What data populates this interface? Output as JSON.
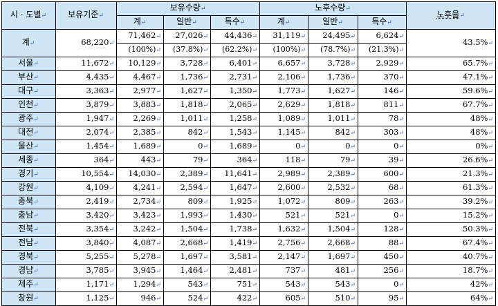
{
  "headers": {
    "region": "시 · 도별",
    "standard": "보유기준",
    "holding": "보유수량",
    "aged": "노후수량",
    "total": "계",
    "general": "일반",
    "special": "특수",
    "aged_rate": "노후율"
  },
  "total_row": {
    "region": "계",
    "standard": "68,220",
    "holding_total": "71,462",
    "holding_general": "27,026",
    "holding_special": "44,436",
    "aged_total": "31,119",
    "aged_general": "24,495",
    "aged_special": "6,624",
    "aged_rate": "43.5%",
    "holding_total_pct": "(100%)",
    "holding_general_pct": "(37.8%)",
    "holding_special_pct": "(62.2%)",
    "aged_total_pct": "(100%)",
    "aged_general_pct": "(78.7%)",
    "aged_special_pct": "(21.3%)"
  },
  "rows": [
    {
      "region": "서울",
      "standard": "11,672",
      "h_total": "10,129",
      "h_general": "3,728",
      "h_special": "6,401",
      "a_total": "6,657",
      "a_general": "3,728",
      "a_special": "2,929",
      "rate": "65.7%"
    },
    {
      "region": "부산",
      "standard": "4,435",
      "h_total": "4,467",
      "h_general": "1,736",
      "h_special": "2,731",
      "a_total": "2,106",
      "a_general": "1,736",
      "a_special": "370",
      "rate": "47.1%"
    },
    {
      "region": "대구",
      "standard": "3,363",
      "h_total": "2,977",
      "h_general": "1,627",
      "h_special": "1,350",
      "a_total": "1,773",
      "a_general": "1,627",
      "a_special": "146",
      "rate": "59.6%"
    },
    {
      "region": "인천",
      "standard": "3,879",
      "h_total": "3,883",
      "h_general": "1,818",
      "h_special": "2,065",
      "a_total": "2,629",
      "a_general": "1,818",
      "a_special": "811",
      "rate": "67.7%"
    },
    {
      "region": "광주",
      "standard": "1,947",
      "h_total": "2,269",
      "h_general": "1,011",
      "h_special": "1,258",
      "a_total": "1,089",
      "a_general": "1,011",
      "a_special": "78",
      "rate": "48%"
    },
    {
      "region": "대전",
      "standard": "2,074",
      "h_total": "2,385",
      "h_general": "842",
      "h_special": "1,543",
      "a_total": "1,145",
      "a_general": "842",
      "a_special": "303",
      "rate": "48%"
    },
    {
      "region": "울산",
      "standard": "1,454",
      "h_total": "1,689",
      "h_general": "0",
      "h_special": "1,689",
      "a_total": "0",
      "a_general": "0",
      "a_special": "0",
      "rate": "0%"
    },
    {
      "region": "세종",
      "standard": "364",
      "h_total": "443",
      "h_general": "79",
      "h_special": "364",
      "a_total": "118",
      "a_general": "79",
      "a_special": "39",
      "rate": "26.6%"
    },
    {
      "region": "경기",
      "standard": "10,554",
      "h_total": "14,030",
      "h_general": "2,389",
      "h_special": "11,641",
      "a_total": "2,989",
      "a_general": "2,389",
      "a_special": "600",
      "rate": "21.3%"
    },
    {
      "region": "강원",
      "standard": "4,109",
      "h_total": "4,241",
      "h_general": "2,594",
      "h_special": "1,647",
      "a_total": "2,600",
      "a_general": "2,532",
      "a_special": "68",
      "rate": "61.3%"
    },
    {
      "region": "충북",
      "standard": "2,419",
      "h_total": "2,734",
      "h_general": "809",
      "h_special": "1,925",
      "a_total": "1,072",
      "a_general": "809",
      "a_special": "263",
      "rate": "39.2%"
    },
    {
      "region": "충남",
      "standard": "3,420",
      "h_total": "3,423",
      "h_general": "1,993",
      "h_special": "1,430",
      "a_total": "521",
      "a_general": "521",
      "a_special": "0",
      "rate": "15.2%"
    },
    {
      "region": "전북",
      "standard": "3,354",
      "h_total": "3,242",
      "h_general": "1,504",
      "h_special": "1,738",
      "a_total": "1,632",
      "a_general": "1,504",
      "a_special": "128",
      "rate": "50.3%"
    },
    {
      "region": "전남",
      "standard": "3,840",
      "h_total": "4,087",
      "h_general": "2,668",
      "h_special": "1,419",
      "a_total": "2,756",
      "a_general": "2,668",
      "a_special": "88",
      "rate": "67.4%"
    },
    {
      "region": "경북",
      "standard": "5,255",
      "h_total": "5,278",
      "h_general": "1,697",
      "h_special": "3,581",
      "a_total": "2,147",
      "a_general": "1,697",
      "a_special": "450",
      "rate": "40.7%"
    },
    {
      "region": "경남",
      "standard": "3,785",
      "h_total": "3,945",
      "h_general": "1,464",
      "h_special": "2,481",
      "a_total": "737",
      "a_general": "481",
      "a_special": "256",
      "rate": "18.7%"
    },
    {
      "region": "제주",
      "standard": "1,171",
      "h_total": "1,294",
      "h_general": "543",
      "h_special": "751",
      "a_total": "543",
      "a_general": "543",
      "a_special": "0",
      "rate": "42%"
    },
    {
      "region": "창원",
      "standard": "1,125",
      "h_total": "946",
      "h_general": "524",
      "h_special": "422",
      "a_total": "605",
      "a_general": "510",
      "a_special": "95",
      "rate": "64%"
    }
  ]
}
